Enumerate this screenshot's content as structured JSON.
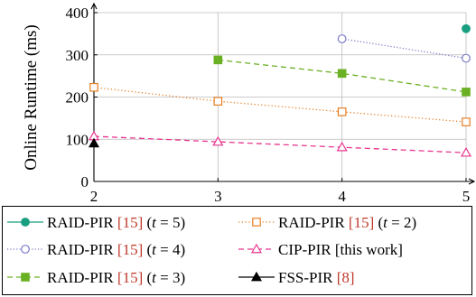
{
  "chart_data": {
    "type": "line",
    "title": "",
    "xlabel": "",
    "ylabel": "Online Runtime (ms)",
    "xlim": [
      2,
      5
    ],
    "ylim": [
      0,
      400
    ],
    "x_ticks": [
      "2",
      "3",
      "4",
      "5"
    ],
    "y_ticks": [
      "0",
      "100",
      "200",
      "300",
      "400"
    ],
    "grid": true,
    "legend_position": "bottom",
    "series": [
      {
        "name": "RAID-PIR [15] (t = 5)",
        "legend_parts": {
          "base": "RAID-PIR ",
          "ref": "[15]",
          "cond_open": " (",
          "var": "t",
          "cond_rest": " = 5)"
        },
        "color": "#1a9e80",
        "marker": "circle-filled",
        "line_style": "solid",
        "x": [
          5
        ],
        "y": [
          362
        ]
      },
      {
        "name": "RAID-PIR [15] (t = 2)",
        "legend_parts": {
          "base": "RAID-PIR ",
          "ref": "[15]",
          "cond_open": " (",
          "var": "t",
          "cond_rest": " = 2)"
        },
        "color": "#e67e22",
        "marker": "square-open",
        "line_style": "dotted",
        "x": [
          2,
          3,
          4,
          5
        ],
        "y": [
          223,
          190,
          165,
          141
        ]
      },
      {
        "name": "RAID-PIR [15] (t = 4)",
        "legend_parts": {
          "base": "RAID-PIR ",
          "ref": "[15]",
          "cond_open": " (",
          "var": "t",
          "cond_rest": " = 4)"
        },
        "color": "#7b7bc8",
        "marker": "circle-open",
        "line_style": "dotted-dense",
        "x": [
          4,
          5
        ],
        "y": [
          338,
          292
        ]
      },
      {
        "name": "CIP-PIR [this work]",
        "legend_parts": {
          "base": "CIP-PIR [this work]",
          "ref": "",
          "cond_open": "",
          "var": "",
          "cond_rest": ""
        },
        "color": "#e8368f",
        "marker": "triangle-open",
        "line_style": "dashed",
        "x": [
          2,
          3,
          4,
          5
        ],
        "y": [
          107,
          94,
          81,
          68
        ]
      },
      {
        "name": "RAID-PIR [15] (t = 3)",
        "legend_parts": {
          "base": "RAID-PIR ",
          "ref": "[15]",
          "cond_open": " (",
          "var": "t",
          "cond_rest": " = 3)"
        },
        "color": "#6ab023",
        "marker": "square-filled",
        "line_style": "dashed",
        "x": [
          3,
          4,
          5
        ],
        "y": [
          288,
          256,
          212
        ]
      },
      {
        "name": "FSS-PIR [8]",
        "legend_parts": {
          "base": "FSS-PIR ",
          "ref": "[8]",
          "cond_open": "",
          "var": "",
          "cond_rest": ""
        },
        "color": "#000000",
        "marker": "triangle-filled",
        "line_style": "solid",
        "x": [
          2
        ],
        "y": [
          90
        ]
      }
    ]
  },
  "colors": {
    "reference_link": "#c0392b",
    "grid": "#bbbbbb",
    "axis": "#000000"
  }
}
